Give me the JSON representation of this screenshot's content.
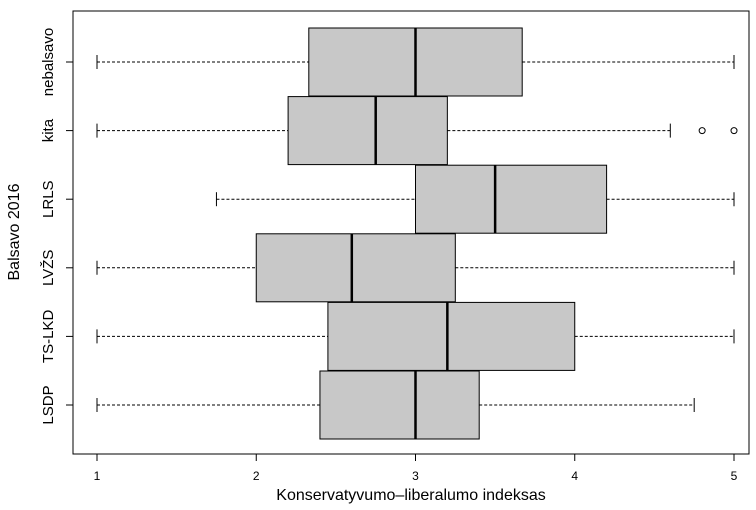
{
  "chart_data": {
    "type": "boxplot",
    "orientation": "horizontal",
    "xlabel": "Konservatyvumo–liberalumo indeksas",
    "ylabel": "Balsavo 2016",
    "xlim": [
      0.85,
      5.05
    ],
    "xticks": [
      1,
      2,
      3,
      4,
      5
    ],
    "box_color": "#c8c8c8",
    "groups": [
      {
        "name": "LSDP",
        "whisker_low": 1.0,
        "q1": 2.4,
        "median": 3.0,
        "q3": 3.4,
        "whisker_high": 4.75,
        "outliers": []
      },
      {
        "name": "TS-LKD",
        "whisker_low": 1.0,
        "q1": 2.45,
        "median": 3.2,
        "q3": 4.0,
        "whisker_high": 5.0,
        "outliers": []
      },
      {
        "name": "LVŽS",
        "whisker_low": 1.0,
        "q1": 2.0,
        "median": 2.6,
        "q3": 3.25,
        "whisker_high": 5.0,
        "outliers": []
      },
      {
        "name": "LRLS",
        "whisker_low": 1.75,
        "q1": 3.0,
        "median": 3.5,
        "q3": 4.2,
        "whisker_high": 5.0,
        "outliers": []
      },
      {
        "name": "kita",
        "whisker_low": 1.0,
        "q1": 2.2,
        "median": 2.75,
        "q3": 3.2,
        "whisker_high": 4.6,
        "outliers": [
          4.8,
          5.0
        ]
      },
      {
        "name": "nebalsavo",
        "whisker_low": 1.0,
        "q1": 2.33,
        "median": 3.0,
        "q3": 3.67,
        "whisker_high": 5.0,
        "outliers": []
      }
    ]
  }
}
